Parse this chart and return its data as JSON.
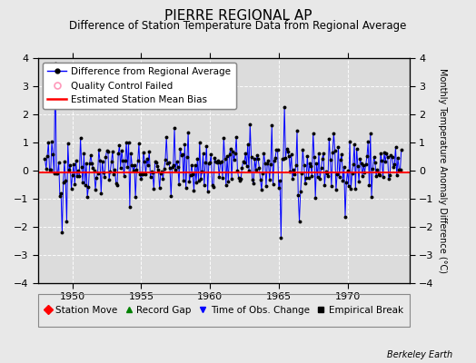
{
  "title": "PIERRE REGIONAL AP",
  "subtitle": "Difference of Station Temperature Data from Regional Average",
  "ylabel_right": "Monthly Temperature Anomaly Difference (°C)",
  "xlim": [
    1947.5,
    1974.5
  ],
  "ylim": [
    -4,
    4
  ],
  "yticks": [
    -4,
    -3,
    -2,
    -1,
    0,
    1,
    2,
    3,
    4
  ],
  "xticks": [
    1950,
    1955,
    1960,
    1965,
    1970
  ],
  "bias_value": -0.05,
  "background_color": "#e8e8e8",
  "plot_bg_color": "#dcdcdc",
  "line_color": "#0000ff",
  "bias_color": "#ff0000",
  "marker_color": "#000000",
  "title_fontsize": 11,
  "subtitle_fontsize": 8.5,
  "tick_fontsize": 8,
  "legend_fontsize": 7.5,
  "watermark": "Berkeley Earth",
  "seed": 42,
  "start_year": 1948.0,
  "end_year": 1974.0,
  "months_per_year": 12
}
